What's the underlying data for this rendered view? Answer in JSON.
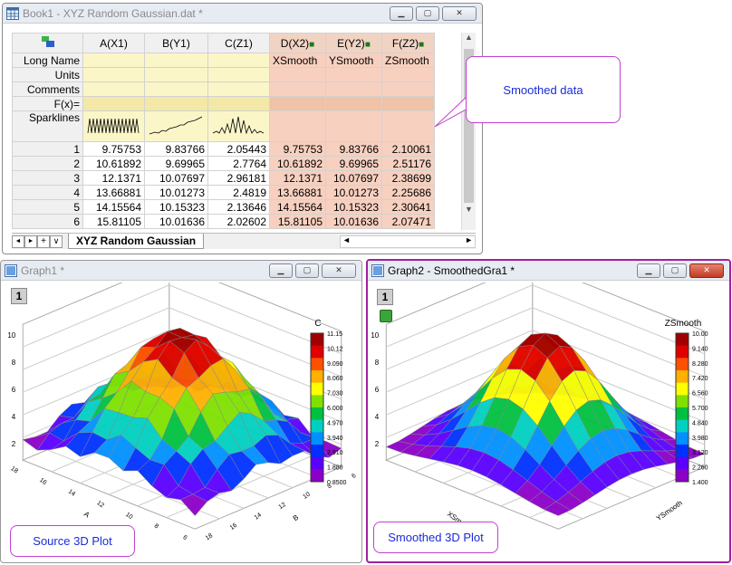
{
  "book": {
    "title": "Book1 - XYZ Random Gaussian.dat *",
    "columns": [
      "A(X1)",
      "B(Y1)",
      "C(Z1)",
      "D(X2)",
      "E(Y2)",
      "F(Z2)"
    ],
    "meta_rows": [
      "Long Name",
      "Units",
      "Comments",
      "F(x)=",
      "Sparklines"
    ],
    "long_names": [
      "",
      "",
      "",
      "XSmooth",
      "YSmooth",
      "ZSmooth"
    ],
    "rows": [
      {
        "n": "1",
        "v": [
          "9.75753",
          "9.83766",
          "2.05443",
          "9.75753",
          "9.83766",
          "2.10061"
        ]
      },
      {
        "n": "2",
        "v": [
          "10.61892",
          "9.69965",
          "2.7764",
          "10.61892",
          "9.69965",
          "2.51176"
        ]
      },
      {
        "n": "3",
        "v": [
          "12.1371",
          "10.07697",
          "2.96181",
          "12.1371",
          "10.07697",
          "2.38699"
        ]
      },
      {
        "n": "4",
        "v": [
          "13.66881",
          "10.01273",
          "2.4819",
          "13.66881",
          "10.01273",
          "2.25686"
        ]
      },
      {
        "n": "5",
        "v": [
          "14.15564",
          "10.15323",
          "2.13646",
          "14.15564",
          "10.15323",
          "2.30641"
        ]
      },
      {
        "n": "6",
        "v": [
          "15.81105",
          "10.01636",
          "2.02602",
          "15.81105",
          "10.01636",
          "2.07471"
        ]
      }
    ],
    "sheet_tab": "XYZ Random Gaussian",
    "nav_buttons": [
      "◄",
      "►",
      "+",
      "∨"
    ]
  },
  "callout_smoothed": "Smoothed data",
  "graph1": {
    "title": "Graph1 *",
    "layer": "1",
    "z_label": "C",
    "colorbar_title": "C",
    "colorbar_ticks": [
      "11.15",
      "10.12",
      "9.090",
      "8.060",
      "7.030",
      "6.000",
      "4.970",
      "3.940",
      "2.910",
      "1.880",
      "0.8500"
    ],
    "z_ticks": [
      "10",
      "8",
      "6",
      "4",
      "2"
    ],
    "x_ticks": [
      "18",
      "16",
      "14",
      "12",
      "10",
      "8",
      "6"
    ],
    "y_ticks": [
      "6",
      "8",
      "10",
      "12",
      "14",
      "16",
      "18"
    ],
    "x_label": "A",
    "y_label": "B",
    "label": "Source  3D Plot"
  },
  "graph2": {
    "title": "Graph2 - SmoothedGra1 *",
    "layer": "1",
    "z_label": "ZSmooth",
    "colorbar_title": "ZSmooth",
    "colorbar_ticks": [
      "10.00",
      "9.140",
      "8.280",
      "7.420",
      "6.560",
      "5.700",
      "4.840",
      "3.980",
      "3.120",
      "2.260",
      "1.400"
    ],
    "z_ticks": [
      "10",
      "8",
      "6",
      "4",
      "2"
    ],
    "x_label": "XSmooth",
    "y_label": "YSmooth",
    "label": "Smoothed 3D Plot"
  },
  "colors": {
    "callout_border": "#c040d0",
    "label_text": "#1a2ad8",
    "smoothed_cols": "#f7d0c0",
    "meta_yellow": "#fbf6c8"
  }
}
